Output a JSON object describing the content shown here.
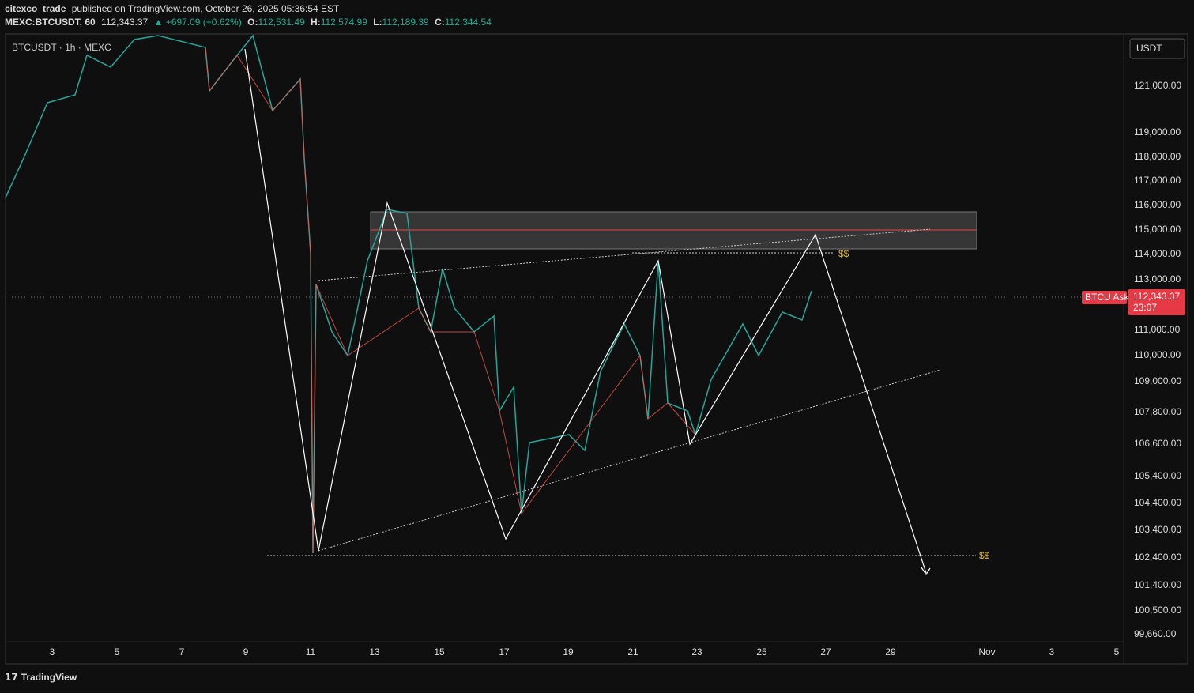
{
  "header": {
    "publisher": "citexco_trade",
    "published": "published on TradingView.com, October 26, 2025 05:36:54 EST",
    "symbol": "MEXC:BTCUSDT, 60",
    "last": "112,343.37",
    "change": "▲ +697.09 (+0.62%)",
    "ohlc": [
      {
        "key": "O:",
        "value": "112,531.49"
      },
      {
        "key": "H:",
        "value": "112,574.99"
      },
      {
        "key": "L:",
        "value": "112,189.39"
      },
      {
        "key": "C:",
        "value": "112,344.54"
      }
    ]
  },
  "chart": {
    "legend": "BTCUSDT · 1h · MEXC",
    "currency": "USDT",
    "price_axis": [
      "121,000.00",
      "119,000.00",
      "118,000.00",
      "117,000.00",
      "116,000.00",
      "115,000.00",
      "114,000.00",
      "113,000.00",
      "111,000.00",
      "110,000.00",
      "109,000.00",
      "107,800.00",
      "106,600.00",
      "105,400.00",
      "104,400.00",
      "103,400.00",
      "102,400.00",
      "101,400.00",
      "100,500.00",
      "99,660.00"
    ],
    "time_axis": [
      "3",
      "5",
      "7",
      "9",
      "11",
      "13",
      "15",
      "17",
      "19",
      "21",
      "23",
      "25",
      "27",
      "29",
      "Nov",
      "3",
      "5"
    ],
    "ask": {
      "name": "BTCU Ask",
      "price": "112,343.37",
      "countdown": "23:07"
    },
    "annotations": [
      "$$",
      "$$"
    ]
  },
  "footer": {
    "brand": "TradingView"
  }
}
